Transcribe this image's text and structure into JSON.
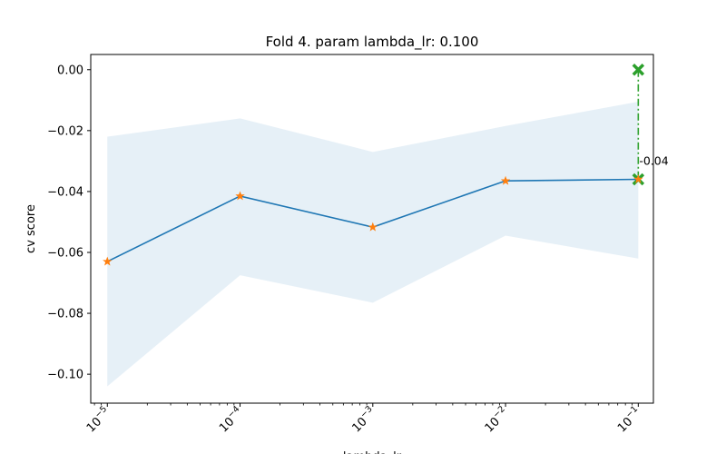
{
  "chart_data": {
    "type": "line",
    "title": "Fold 4. param lambda_lr: 0.100",
    "xlabel": "lambda_lr",
    "ylabel": "cv score",
    "xscale": "log",
    "xlim": [
      7.5e-06,
      0.13
    ],
    "ylim": [
      -0.1095,
      0.005
    ],
    "grid": false,
    "x": [
      1e-05,
      0.0001,
      0.001,
      0.01,
      0.1
    ],
    "x_tick_labels": [
      {
        "base": "10",
        "exp": "−5"
      },
      {
        "base": "10",
        "exp": "−4"
      },
      {
        "base": "10",
        "exp": "−3"
      },
      {
        "base": "10",
        "exp": "−2"
      },
      {
        "base": "10",
        "exp": "−1"
      }
    ],
    "y_ticks": [
      0.0,
      -0.02,
      -0.04,
      -0.06,
      -0.08,
      -0.1
    ],
    "y_tick_labels": [
      "0.00",
      "−0.02",
      "−0.04",
      "−0.06",
      "−0.08",
      "−0.10"
    ],
    "series": [
      {
        "values": [
          -0.063,
          -0.0415,
          -0.0517,
          -0.0365,
          -0.036
        ],
        "line_color": "#1f77b4",
        "marker_color": "#ff7f0e",
        "marker": "star"
      }
    ],
    "band": {
      "upper": [
        -0.022,
        -0.016,
        -0.027,
        -0.0185,
        -0.0105
      ],
      "lower": [
        -0.104,
        -0.0675,
        -0.0765,
        -0.0545,
        -0.062
      ],
      "color": "#1f77b4",
      "opacity": 0.11
    },
    "annotation": {
      "x": 0.1,
      "y_from": 0.0,
      "y_to": -0.036,
      "label": "-0.04",
      "color": "#2ca02c",
      "marker": "x"
    }
  }
}
